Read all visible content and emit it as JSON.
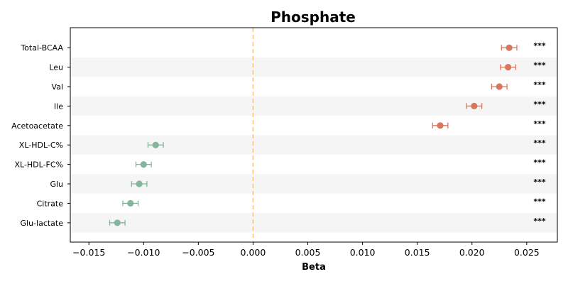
{
  "chart_data": {
    "type": "scatter",
    "subtype": "forest-plot",
    "title": "Phosphate",
    "xlabel": "Beta",
    "ylabel": "",
    "xlim": [
      -0.0167,
      0.0278
    ],
    "xticks": [
      -0.015,
      -0.01,
      -0.005,
      0.0,
      0.005,
      0.01,
      0.015,
      0.02,
      0.025
    ],
    "xtick_labels": [
      "−0.015",
      "−0.010",
      "−0.005",
      "0.000",
      "0.005",
      "0.010",
      "0.015",
      "0.020",
      "0.025"
    ],
    "reference_line": {
      "x": 0.0,
      "style": "dashed",
      "color": "#f5c87a"
    },
    "row_shading": {
      "colors": [
        "#ffffff",
        "#f5f5f5"
      ]
    },
    "colors": {
      "positive": "#d9775e",
      "negative": "#86b59d"
    },
    "categories": [
      "Total-BCAA",
      "Leu",
      "Val",
      "Ile",
      "Acetoacetate",
      "XL-HDL-C%",
      "XL-HDL-FC%",
      "Glu",
      "Citrate",
      "Glu-lactate"
    ],
    "values": [
      0.0234,
      0.0233,
      0.0225,
      0.0202,
      0.0171,
      -0.0089,
      -0.01,
      -0.0104,
      -0.0112,
      -0.0124
    ],
    "ci_low": [
      0.0227,
      0.0226,
      0.0218,
      0.0195,
      0.0164,
      -0.0096,
      -0.0107,
      -0.0111,
      -0.0119,
      -0.0131
    ],
    "ci_high": [
      0.0241,
      0.024,
      0.0232,
      0.0209,
      0.0178,
      -0.0082,
      -0.0093,
      -0.0097,
      -0.0105,
      -0.0117
    ],
    "significance": [
      "***",
      "***",
      "***",
      "***",
      "***",
      "***",
      "***",
      "***",
      "***",
      "***"
    ],
    "grid": false,
    "legend": "none"
  }
}
